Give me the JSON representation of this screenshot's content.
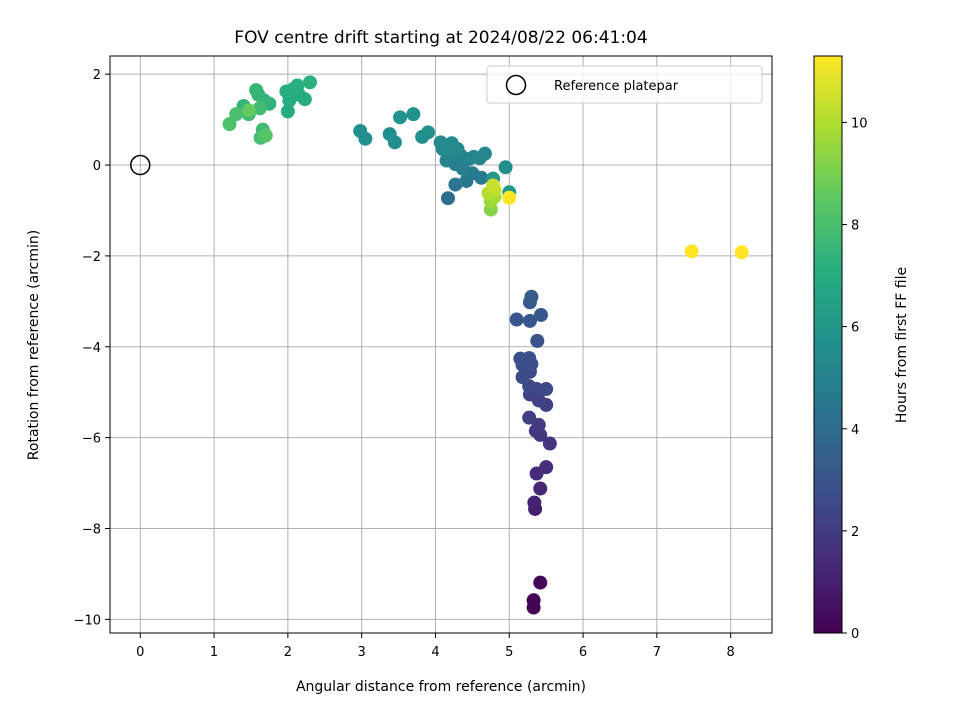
{
  "chart_data": {
    "type": "scatter",
    "title": "FOV centre drift starting at 2024/08/22 06:41:04",
    "xlabel": "Angular distance from reference (arcmin)",
    "ylabel": "Rotation from reference (arcmin)",
    "xlim": [
      -0.41,
      8.56
    ],
    "ylim": [
      -10.3,
      2.4
    ],
    "x_ticks": [
      0,
      1,
      2,
      3,
      4,
      5,
      6,
      7,
      8
    ],
    "y_ticks": [
      -10,
      -8,
      -6,
      -4,
      -2,
      0,
      2
    ],
    "grid": true,
    "legend": {
      "placement": "top-right",
      "entries": [
        "Reference platepar"
      ]
    },
    "reference_point": {
      "x": 0,
      "y": 0,
      "marker": "open-circle"
    },
    "colorbar": {
      "label": "Hours from first FF file",
      "colormap": "viridis",
      "range": [
        0,
        11.3
      ],
      "ticks": [
        0,
        2,
        4,
        6,
        8,
        10
      ]
    },
    "points": [
      {
        "x": 5.33,
        "y": -9.74,
        "h": 0.05
      },
      {
        "x": 5.33,
        "y": -9.58,
        "h": 0.1
      },
      {
        "x": 5.42,
        "y": -9.19,
        "h": 0.2
      },
      {
        "x": 5.35,
        "y": -7.57,
        "h": 1.0
      },
      {
        "x": 5.34,
        "y": -7.43,
        "h": 1.1
      },
      {
        "x": 5.42,
        "y": -7.12,
        "h": 1.2
      },
      {
        "x": 5.37,
        "y": -6.79,
        "h": 1.4
      },
      {
        "x": 5.5,
        "y": -6.65,
        "h": 1.5
      },
      {
        "x": 5.55,
        "y": -6.13,
        "h": 1.7
      },
      {
        "x": 5.42,
        "y": -5.94,
        "h": 1.8
      },
      {
        "x": 5.36,
        "y": -5.85,
        "h": 1.9
      },
      {
        "x": 5.4,
        "y": -5.72,
        "h": 2.0
      },
      {
        "x": 5.27,
        "y": -5.56,
        "h": 2.1
      },
      {
        "x": 5.5,
        "y": -5.28,
        "h": 2.2
      },
      {
        "x": 5.4,
        "y": -5.18,
        "h": 2.3
      },
      {
        "x": 5.28,
        "y": -5.05,
        "h": 2.3
      },
      {
        "x": 5.37,
        "y": -4.93,
        "h": 2.4
      },
      {
        "x": 5.5,
        "y": -4.93,
        "h": 2.5
      },
      {
        "x": 5.27,
        "y": -4.87,
        "h": 2.5
      },
      {
        "x": 5.18,
        "y": -4.67,
        "h": 2.6
      },
      {
        "x": 5.28,
        "y": -4.55,
        "h": 2.6
      },
      {
        "x": 5.18,
        "y": -4.4,
        "h": 2.7
      },
      {
        "x": 5.3,
        "y": -4.38,
        "h": 2.7
      },
      {
        "x": 5.15,
        "y": -4.26,
        "h": 2.8
      },
      {
        "x": 5.27,
        "y": -4.25,
        "h": 2.8
      },
      {
        "x": 5.38,
        "y": -3.87,
        "h": 2.9
      },
      {
        "x": 5.28,
        "y": -3.43,
        "h": 3.0
      },
      {
        "x": 5.1,
        "y": -3.4,
        "h": 3.0
      },
      {
        "x": 5.43,
        "y": -3.3,
        "h": 3.1
      },
      {
        "x": 5.28,
        "y": -3.02,
        "h": 3.2
      },
      {
        "x": 5.3,
        "y": -2.9,
        "h": 3.3
      },
      {
        "x": 4.17,
        "y": -0.73,
        "h": 4.2
      },
      {
        "x": 4.27,
        "y": -0.43,
        "h": 4.4
      },
      {
        "x": 4.42,
        "y": -0.35,
        "h": 4.5
      },
      {
        "x": 4.62,
        "y": -0.28,
        "h": 4.6
      },
      {
        "x": 4.5,
        "y": -0.18,
        "h": 4.7
      },
      {
        "x": 4.37,
        "y": -0.08,
        "h": 4.8
      },
      {
        "x": 4.27,
        "y": 0.02,
        "h": 4.9
      },
      {
        "x": 4.15,
        "y": 0.1,
        "h": 5.0
      },
      {
        "x": 4.45,
        "y": 0.13,
        "h": 5.0
      },
      {
        "x": 4.6,
        "y": 0.15,
        "h": 5.1
      },
      {
        "x": 4.35,
        "y": 0.2,
        "h": 5.1
      },
      {
        "x": 4.52,
        "y": 0.18,
        "h": 5.2
      },
      {
        "x": 4.25,
        "y": 0.25,
        "h": 5.2
      },
      {
        "x": 4.67,
        "y": 0.25,
        "h": 5.2
      },
      {
        "x": 4.1,
        "y": 0.35,
        "h": 5.3
      },
      {
        "x": 4.2,
        "y": 0.35,
        "h": 5.3
      },
      {
        "x": 4.3,
        "y": 0.35,
        "h": 5.3
      },
      {
        "x": 4.07,
        "y": 0.5,
        "h": 5.4
      },
      {
        "x": 4.22,
        "y": 0.48,
        "h": 5.4
      },
      {
        "x": 4.95,
        "y": -0.05,
        "h": 5.5
      },
      {
        "x": 3.45,
        "y": 0.5,
        "h": 5.5
      },
      {
        "x": 3.05,
        "y": 0.58,
        "h": 5.6
      },
      {
        "x": 3.82,
        "y": 0.62,
        "h": 5.6
      },
      {
        "x": 3.38,
        "y": 0.68,
        "h": 5.6
      },
      {
        "x": 3.9,
        "y": 0.72,
        "h": 5.7
      },
      {
        "x": 2.98,
        "y": 0.75,
        "h": 5.7
      },
      {
        "x": 3.52,
        "y": 1.05,
        "h": 5.8
      },
      {
        "x": 3.7,
        "y": 1.12,
        "h": 5.8
      },
      {
        "x": 4.78,
        "y": -0.3,
        "h": 6.0
      },
      {
        "x": 5.0,
        "y": -0.6,
        "h": 6.2
      },
      {
        "x": 2.0,
        "y": 1.18,
        "h": 6.9
      },
      {
        "x": 2.02,
        "y": 1.42,
        "h": 6.9
      },
      {
        "x": 2.23,
        "y": 1.45,
        "h": 7.0
      },
      {
        "x": 2.15,
        "y": 1.55,
        "h": 7.0
      },
      {
        "x": 1.98,
        "y": 1.62,
        "h": 7.1
      },
      {
        "x": 2.08,
        "y": 1.68,
        "h": 7.1
      },
      {
        "x": 2.13,
        "y": 1.75,
        "h": 7.1
      },
      {
        "x": 2.3,
        "y": 1.82,
        "h": 7.2
      },
      {
        "x": 1.75,
        "y": 1.35,
        "h": 7.3
      },
      {
        "x": 1.68,
        "y": 1.42,
        "h": 7.4
      },
      {
        "x": 1.6,
        "y": 1.55,
        "h": 7.4
      },
      {
        "x": 1.57,
        "y": 1.65,
        "h": 7.5
      },
      {
        "x": 1.4,
        "y": 1.3,
        "h": 7.5
      },
      {
        "x": 1.47,
        "y": 1.12,
        "h": 7.6
      },
      {
        "x": 1.66,
        "y": 0.78,
        "h": 7.7
      },
      {
        "x": 1.62,
        "y": 1.25,
        "h": 7.8
      },
      {
        "x": 1.63,
        "y": 0.6,
        "h": 7.9
      },
      {
        "x": 1.3,
        "y": 1.12,
        "h": 8.0
      },
      {
        "x": 1.21,
        "y": 0.9,
        "h": 8.1
      },
      {
        "x": 1.7,
        "y": 0.65,
        "h": 8.3
      },
      {
        "x": 1.47,
        "y": 1.2,
        "h": 8.6
      },
      {
        "x": 4.75,
        "y": -0.98,
        "h": 9.2
      },
      {
        "x": 4.75,
        "y": -0.8,
        "h": 9.6
      },
      {
        "x": 4.8,
        "y": -0.7,
        "h": 9.8
      },
      {
        "x": 4.72,
        "y": -0.62,
        "h": 10.0
      },
      {
        "x": 4.8,
        "y": -0.55,
        "h": 10.2
      },
      {
        "x": 4.78,
        "y": -0.45,
        "h": 10.4
      },
      {
        "x": 5.0,
        "y": -0.72,
        "h": 11.3
      },
      {
        "x": 7.47,
        "y": -1.9,
        "h": 11.3
      },
      {
        "x": 8.15,
        "y": -1.92,
        "h": 11.3
      }
    ]
  }
}
